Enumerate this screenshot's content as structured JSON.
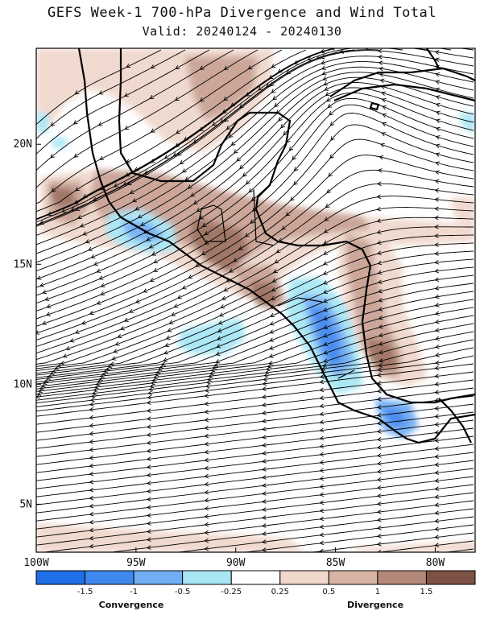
{
  "title": "GEFS Week-1 700-hPa Divergence and Wind Total",
  "subtitle": "Valid: 20240124 - 20240130",
  "map": {
    "lon_range": [
      -100,
      -78
    ],
    "lat_range": [
      3,
      24
    ],
    "x_ticks": [
      "100W",
      "95W",
      "90W",
      "85W",
      "80W"
    ],
    "y_ticks": [
      "5N",
      "10N",
      "15N",
      "20N"
    ]
  },
  "colorbar": {
    "labels": [
      "-1.5",
      "-1",
      "-0.5",
      "-0.25",
      "0.25",
      "0.5",
      "1",
      "1.5"
    ],
    "colors": [
      "#1f6fe6",
      "#3f88ee",
      "#72aef3",
      "#a8e6f5",
      "#ffffff",
      "#f0d8cc",
      "#d7b4a4",
      "#b48878",
      "#7d5244"
    ],
    "convergence_label": "Convergence",
    "divergence_label": "Divergence"
  },
  "colors": {
    "convergence_strong": "#3f88ee",
    "convergence_weak": "#a8e6f5",
    "divergence_weak": "#f0d8cc",
    "divergence_moderate": "#c9a294",
    "divergence_strong": "#9c7060"
  }
}
